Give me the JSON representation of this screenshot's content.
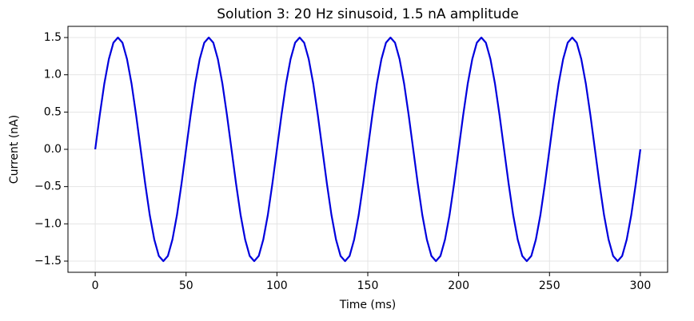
{
  "chart_data": {
    "type": "line",
    "title": "Solution 3: 20 Hz sinusoid, 1.5 nA amplitude",
    "xlabel": "Time (ms)",
    "ylabel": "Current (nA)",
    "xlim": [
      -15,
      315
    ],
    "ylim": [
      -1.65,
      1.65
    ],
    "xticks": [
      0,
      50,
      100,
      150,
      200,
      250,
      300
    ],
    "yticks": [
      {
        "value": -1.5,
        "label": "−1.5"
      },
      {
        "value": -1.0,
        "label": "−1.0"
      },
      {
        "value": -0.5,
        "label": "−0.5"
      },
      {
        "value": 0,
        "label": "0.0"
      },
      0.5,
      {
        "value": 1.0,
        "label": "1.0"
      },
      1.5
    ],
    "grid": true,
    "series": [
      {
        "name": "Current",
        "color": "#0000dd",
        "x": [
          0,
          2.5,
          5,
          7.5,
          10,
          12.5,
          15,
          17.5,
          20,
          22.5,
          25,
          27.5,
          30,
          32.5,
          35,
          37.5,
          40,
          42.5,
          45,
          47.5,
          50,
          52.5,
          55,
          57.5,
          60,
          62.5,
          65,
          67.5,
          70,
          72.5,
          75,
          77.5,
          80,
          82.5,
          85,
          87.5,
          90,
          92.5,
          95,
          97.5,
          100,
          102.5,
          105,
          107.5,
          110,
          112.5,
          115,
          117.5,
          120,
          122.5,
          125,
          127.5,
          130,
          132.5,
          135,
          137.5,
          140,
          142.5,
          145,
          147.5,
          150,
          152.5,
          155,
          157.5,
          160,
          162.5,
          165,
          167.5,
          170,
          172.5,
          175,
          177.5,
          180,
          182.5,
          185,
          187.5,
          190,
          192.5,
          195,
          197.5,
          200,
          202.5,
          205,
          207.5,
          210,
          212.5,
          215,
          217.5,
          220,
          222.5,
          225,
          227.5,
          230,
          232.5,
          235,
          237.5,
          240,
          242.5,
          245,
          247.5,
          250,
          252.5,
          255,
          257.5,
          260,
          262.5,
          265,
          267.5,
          270,
          272.5,
          275,
          277.5,
          280,
          282.5,
          285,
          287.5,
          290,
          292.5,
          295,
          297.5,
          300
        ],
        "values": [
          0,
          0.46,
          0.88,
          1.21,
          1.43,
          1.5,
          1.43,
          1.21,
          0.88,
          0.46,
          0,
          -0.46,
          -0.88,
          -1.21,
          -1.43,
          -1.5,
          -1.43,
          -1.21,
          -0.88,
          -0.46,
          0,
          0.46,
          0.88,
          1.21,
          1.43,
          1.5,
          1.43,
          1.21,
          0.88,
          0.46,
          0,
          -0.46,
          -0.88,
          -1.21,
          -1.43,
          -1.5,
          -1.43,
          -1.21,
          -0.88,
          -0.46,
          0,
          0.46,
          0.88,
          1.21,
          1.43,
          1.5,
          1.43,
          1.21,
          0.88,
          0.46,
          0,
          -0.46,
          -0.88,
          -1.21,
          -1.43,
          -1.5,
          -1.43,
          -1.21,
          -0.88,
          -0.46,
          0,
          0.46,
          0.88,
          1.21,
          1.43,
          1.5,
          1.43,
          1.21,
          0.88,
          0.46,
          0,
          -0.46,
          -0.88,
          -1.21,
          -1.43,
          -1.5,
          -1.43,
          -1.21,
          -0.88,
          -0.46,
          0,
          0.46,
          0.88,
          1.21,
          1.43,
          1.5,
          1.43,
          1.21,
          0.88,
          0.46,
          0,
          -0.46,
          -0.88,
          -1.21,
          -1.43,
          -1.5,
          -1.43,
          -1.21,
          -0.88,
          -0.46,
          0,
          0.46,
          0.88,
          1.21,
          1.43,
          1.5,
          1.43,
          1.21,
          0.88,
          0.46,
          0,
          -0.46,
          -0.88,
          -1.21,
          -1.43,
          -1.5,
          -1.43,
          -1.21,
          -0.88,
          -0.46,
          0
        ]
      }
    ]
  }
}
